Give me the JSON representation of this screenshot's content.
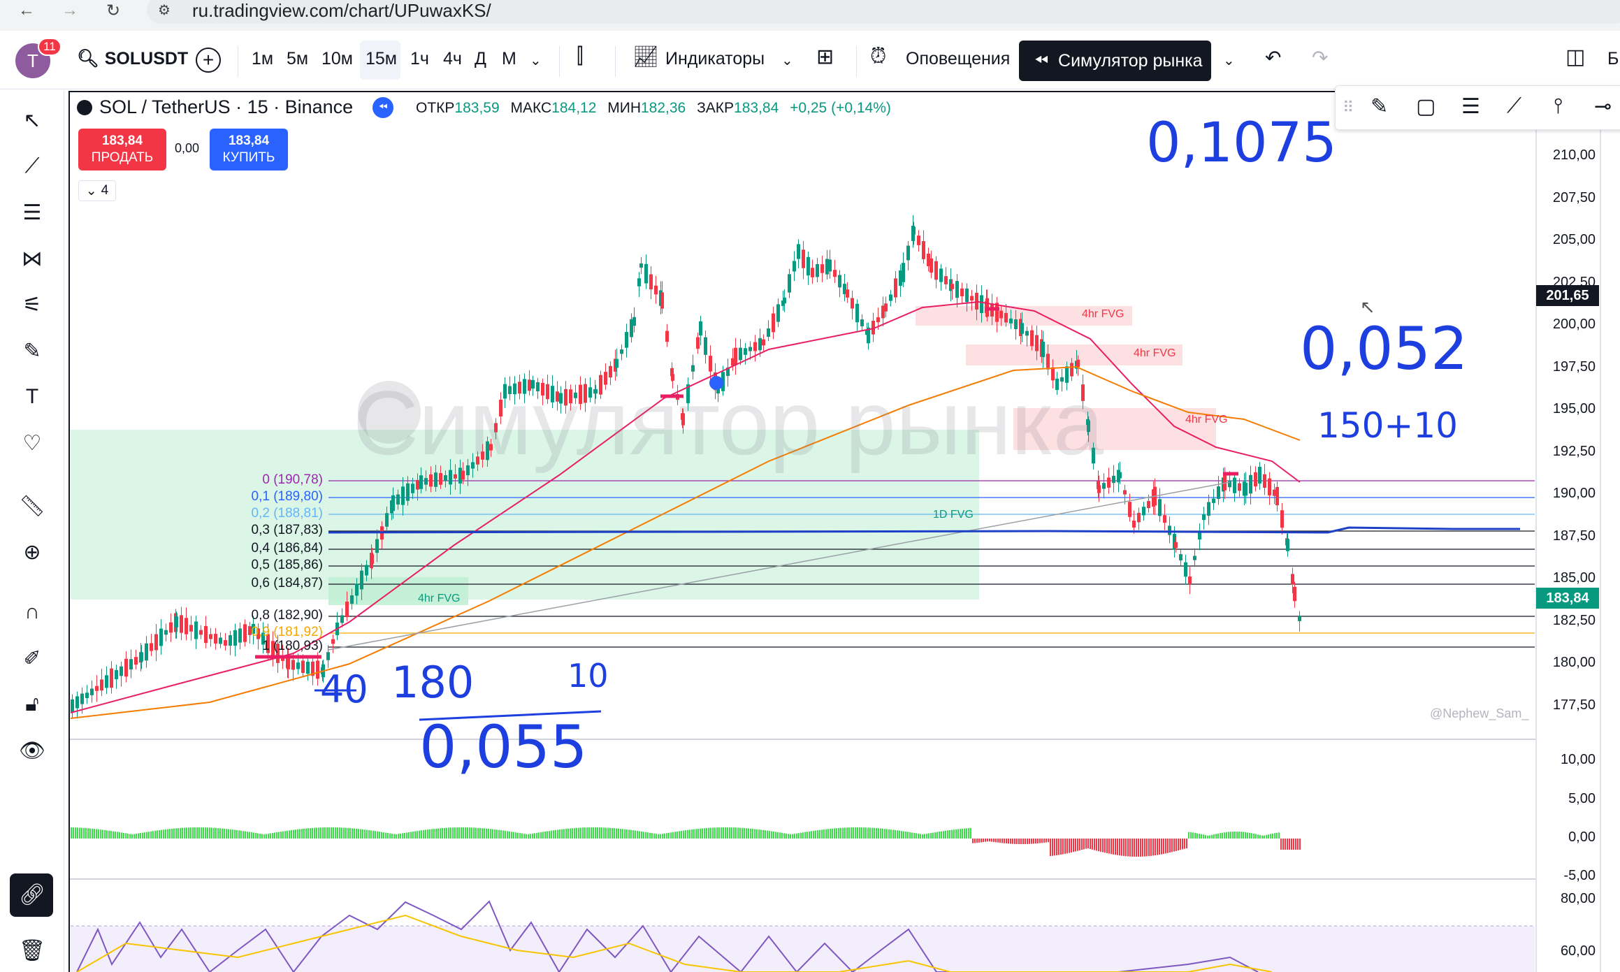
{
  "browser": {
    "url": "ru.tradingview.com/chart/UPuwaxKS/",
    "back_icon": "back-arrow-icon",
    "forward_icon": "forward-arrow-icon",
    "reload_icon": "reload-icon"
  },
  "toolbar": {
    "avatar_letter": "T",
    "notifications": "11",
    "symbol": "SOLUSDT",
    "timeframes": [
      "1м",
      "5м",
      "10м",
      "15м",
      "1ч",
      "4ч",
      "Д",
      "М"
    ],
    "active_timeframe": "15м",
    "indicators_label": "Индикаторы",
    "alerts_label": "Оповещения",
    "replay_label": "Симулятор рынка",
    "right_partial_label": "Б"
  },
  "legend": {
    "title": "SOL / TetherUS · 15 · Binance",
    "open_label": "ОТКР",
    "open_value": "183,59",
    "high_label": "МАКС",
    "high_value": "184,12",
    "low_label": "МИН",
    "low_value": "182,36",
    "close_label": "ЗАКР",
    "close_value": "183,84",
    "change": "+0,25 (+0,14%)",
    "sell_price": "183,84",
    "sell_label": "ПРОДАТЬ",
    "buy_price": "183,84",
    "buy_label": "КУПИТЬ",
    "spread": "0,00",
    "collapsed_count": "4"
  },
  "price_scale": {
    "ticks": [
      "210,00",
      "207,50",
      "205,00",
      "202,50",
      "200,00",
      "197,50",
      "195,00",
      "192,50",
      "190,00",
      "187,50",
      "185,00",
      "182,50",
      "180,00",
      "177,50"
    ],
    "crosshair_price": "201,65",
    "last_price": "183,84"
  },
  "oscillator_scale": {
    "ticks": [
      "10,00",
      "5,00",
      "0,00",
      "-5,00"
    ]
  },
  "rsi_scale": {
    "ticks": [
      "80,00",
      "60,00"
    ]
  },
  "fib_levels": [
    {
      "label": "0 (190,78)",
      "color": "#9c27b0"
    },
    {
      "label": "0,1 (189,80)",
      "color": "#2962ff"
    },
    {
      "label": "0,2 (188,81)",
      "color": "#64b5f6"
    },
    {
      "label": "0,3 (187,83)",
      "color": "#131722"
    },
    {
      "label": "0,4 (186,84)",
      "color": "#131722"
    },
    {
      "label": "0,5 (185,86)",
      "color": "#131722"
    },
    {
      "label": "0,6 (184,87)",
      "color": "#131722"
    },
    {
      "label": "0,8 (182,90)",
      "color": "#131722"
    },
    {
      "label": "0,9 (181,92)",
      "color": "#f7a600"
    },
    {
      "label": "1 (180,93)",
      "color": "#131722"
    }
  ],
  "annotations": {
    "fvg_4hr": "4hr FVG",
    "fvg_1d": "1D FVG",
    "watermark": "Симулятор рынка",
    "author": "@Nephew_Sam_"
  },
  "handwritten": {
    "note_top": "0,1075",
    "note_right": "0,052",
    "note_right_small": "150+10",
    "note_bottom": "0,055",
    "note_180": "180",
    "note_40": "40",
    "note_10": "10"
  },
  "colors": {
    "up": "#089981",
    "down": "#f23645",
    "ma_fast": "#e91e63",
    "ma_slow": "#f57c00",
    "fib_zone": "#b2f0d0",
    "hand_ink": "#1e3fe0",
    "sell": "#f23645",
    "buy": "#2962ff"
  }
}
